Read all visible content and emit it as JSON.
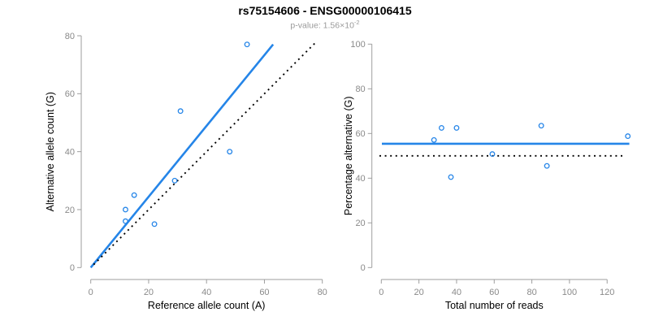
{
  "figure": {
    "title": "rs75154606 - ENSG00000106415",
    "subtitle": {
      "text": "p-value: 1.56×10",
      "exponent": "-2"
    }
  },
  "colors": {
    "accent_blue": "#2585e8",
    "identity_black": "#000000",
    "axis_gray": "#9e9e9e",
    "tick_label_gray": "#8a8a8a"
  },
  "chart_data": [
    {
      "type": "scatter",
      "name": "allele-counts-scatter",
      "xlabel": "Reference allele count (A)",
      "ylabel": "Alternative allele count (G)",
      "xlim": [
        0,
        80
      ],
      "ylim": [
        0,
        80
      ],
      "xticks": [
        0,
        20,
        40,
        60,
        80
      ],
      "yticks": [
        0,
        20,
        40,
        60,
        80
      ],
      "grid": false,
      "legend": null,
      "points": [
        [
          12,
          16
        ],
        [
          12,
          20
        ],
        [
          15,
          25
        ],
        [
          22,
          15
        ],
        [
          29,
          30
        ],
        [
          31,
          54
        ],
        [
          48,
          40
        ],
        [
          54,
          77
        ]
      ],
      "lines": [
        {
          "name": "regression-line",
          "style": "solid",
          "color_key": "accent_blue",
          "from": [
            0,
            0
          ],
          "to": [
            63,
            77
          ]
        },
        {
          "name": "identity-line",
          "style": "dotted",
          "color_key": "identity_black",
          "from": [
            1,
            1
          ],
          "to": [
            77.5,
            77.5
          ]
        }
      ]
    },
    {
      "type": "scatter",
      "name": "percentage-vs-reads-scatter",
      "xlabel": "Total number of reads",
      "ylabel": "Percentage alternative (G)",
      "xlim": [
        0,
        131
      ],
      "ylim": [
        0,
        100
      ],
      "xticks": [
        0,
        20,
        40,
        60,
        80,
        100,
        120
      ],
      "yticks": [
        0,
        20,
        40,
        60,
        80,
        100
      ],
      "grid": false,
      "legend": null,
      "points": [
        [
          28,
          57.1
        ],
        [
          32,
          62.5
        ],
        [
          37,
          40.5
        ],
        [
          40,
          62.5
        ],
        [
          59,
          50.8
        ],
        [
          85,
          63.5
        ],
        [
          88,
          45.5
        ],
        [
          131,
          58.8
        ]
      ],
      "lines": [
        {
          "name": "mean-percentage-line",
          "style": "solid",
          "color_key": "accent_blue",
          "from": [
            0.3,
            55.4
          ],
          "to": [
            131.8,
            55.4
          ]
        },
        {
          "name": "fifty-percent-line",
          "style": "dotted",
          "color_key": "identity_black",
          "from": [
            -1,
            50
          ],
          "to": [
            129,
            50
          ]
        }
      ]
    }
  ]
}
